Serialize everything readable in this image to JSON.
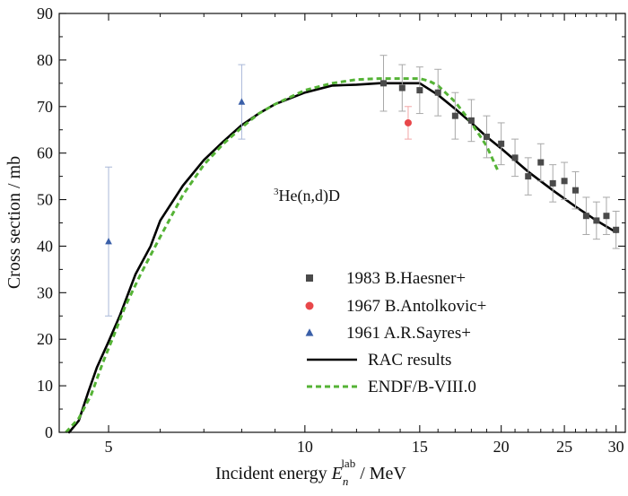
{
  "chart_data": {
    "type": "scatter",
    "title": "",
    "annotation": {
      "sup": "3",
      "text": "He(n,d)D"
    },
    "xlabel": {
      "prefix": "Incident energy ",
      "symbol": "E",
      "sub": "n",
      "sup": "lab",
      "suffix": " / MeV"
    },
    "ylabel": "Cross section / mb",
    "xscale": "log",
    "xlim": [
      4.2,
      31
    ],
    "ylim": [
      0,
      90
    ],
    "xticks": [
      5,
      10,
      15,
      20,
      25,
      30
    ],
    "xtick_labels": [
      "5",
      "10",
      "15",
      "20",
      "25",
      "30"
    ],
    "xminor": [
      6,
      7,
      8,
      9,
      11,
      12,
      13,
      14,
      16,
      17,
      18,
      19,
      21,
      22,
      23,
      24,
      26,
      27,
      28,
      29
    ],
    "yticks": [
      0,
      10,
      20,
      30,
      40,
      50,
      60,
      70,
      80,
      90
    ],
    "ytick_labels": [
      "0",
      "10",
      "20",
      "30",
      "40",
      "50",
      "60",
      "70",
      "80",
      "90"
    ],
    "yminor": [
      5,
      15,
      25,
      35,
      45,
      55,
      65,
      75,
      85
    ],
    "grid": false,
    "legend_position": "lower-right",
    "series": [
      {
        "name": "1983 B.Haesner+",
        "kind": "points",
        "marker": "square",
        "color": "#4a4a4a",
        "errcolor": "#a8a8a8",
        "points": [
          {
            "x": 13.2,
            "y": 75.0,
            "err": 6.0
          },
          {
            "x": 14.1,
            "y": 74.0,
            "err": 5.0
          },
          {
            "x": 15.0,
            "y": 73.5,
            "err": 5.0
          },
          {
            "x": 16.0,
            "y": 73.0,
            "err": 5.0
          },
          {
            "x": 17.0,
            "y": 68.0,
            "err": 5.0
          },
          {
            "x": 18.0,
            "y": 67.0,
            "err": 4.5
          },
          {
            "x": 19.0,
            "y": 63.5,
            "err": 4.5
          },
          {
            "x": 20.0,
            "y": 62.0,
            "err": 4.5
          },
          {
            "x": 21.0,
            "y": 59.0,
            "err": 4.0
          },
          {
            "x": 22.0,
            "y": 55.0,
            "err": 4.0
          },
          {
            "x": 23.0,
            "y": 58.0,
            "err": 4.0
          },
          {
            "x": 24.0,
            "y": 53.5,
            "err": 4.0
          },
          {
            "x": 25.0,
            "y": 54.0,
            "err": 4.0
          },
          {
            "x": 26.0,
            "y": 52.0,
            "err": 4.0
          },
          {
            "x": 27.0,
            "y": 46.5,
            "err": 4.0
          },
          {
            "x": 28.0,
            "y": 45.5,
            "err": 4.0
          },
          {
            "x": 29.0,
            "y": 46.5,
            "err": 4.0
          },
          {
            "x": 30.0,
            "y": 43.5,
            "err": 4.0
          }
        ]
      },
      {
        "name": "1967 B.Antolkovic+",
        "kind": "points",
        "marker": "circle",
        "color": "#e8474a",
        "errcolor": "#f2a5a6",
        "points": [
          {
            "x": 14.4,
            "y": 66.5,
            "err": 3.5
          }
        ]
      },
      {
        "name": "1961 A.R.Sayres+",
        "kind": "points",
        "marker": "triangle",
        "color": "#3a5fa8",
        "errcolor": "#a9b8d8",
        "points": [
          {
            "x": 5.0,
            "y": 41.0,
            "err": 16.0
          },
          {
            "x": 8.0,
            "y": 71.0,
            "err": 8.0
          }
        ]
      },
      {
        "name": "RAC results",
        "kind": "line",
        "color": "#000000",
        "dash": "",
        "x": [
          4.35,
          4.5,
          4.65,
          4.8,
          5.0,
          5.2,
          5.5,
          5.8,
          6.0,
          6.5,
          7.0,
          7.5,
          8.0,
          8.5,
          9.0,
          10.0,
          11.0,
          12.0,
          13.0,
          14.0,
          15.0,
          16.0,
          17.0,
          18.0,
          19.0,
          20.0,
          22.0,
          24.0,
          26.0,
          28.0,
          30.0
        ],
        "y": [
          0,
          2.5,
          8.5,
          14.0,
          19.5,
          25.0,
          34.0,
          40.0,
          45.5,
          53.0,
          58.5,
          62.5,
          66.0,
          68.5,
          70.5,
          73.0,
          74.5,
          74.7,
          75.0,
          75.0,
          75.0,
          72.5,
          69.5,
          66.5,
          63.5,
          61.0,
          56.0,
          52.0,
          48.5,
          45.5,
          43.0
        ]
      },
      {
        "name": "ENDF/B-VIII.0",
        "kind": "line",
        "color": "#55b336",
        "dash": "6,4",
        "x": [
          4.3,
          4.5,
          4.7,
          4.9,
          5.1,
          5.3,
          5.6,
          6.0,
          6.5,
          7.0,
          7.5,
          8.0,
          8.5,
          9.0,
          10.0,
          11.0,
          12.0,
          13.0,
          14.0,
          15.0,
          15.5,
          16.0,
          17.0,
          18.0,
          19.0,
          19.8
        ],
        "y": [
          0,
          3.0,
          8.0,
          15.0,
          21.0,
          27.0,
          34.0,
          42.0,
          51.0,
          57.5,
          62.0,
          65.5,
          68.5,
          70.5,
          73.5,
          75.0,
          75.8,
          76.0,
          76.0,
          76.0,
          75.5,
          74.5,
          71.0,
          66.5,
          61.5,
          56.0
        ]
      }
    ]
  }
}
